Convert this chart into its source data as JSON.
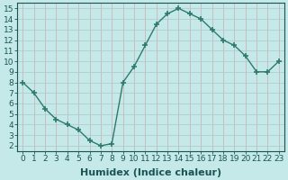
{
  "xlabel": "Humidex (Indice chaleur)",
  "x": [
    0,
    1,
    2,
    3,
    4,
    5,
    6,
    7,
    8,
    9,
    10,
    11,
    12,
    13,
    14,
    15,
    16,
    17,
    18,
    19,
    20,
    21,
    22,
    23
  ],
  "y": [
    8.0,
    7.0,
    5.5,
    4.5,
    4.0,
    3.5,
    2.5,
    2.0,
    2.2,
    8.0,
    9.5,
    11.5,
    13.5,
    14.5,
    15.0,
    14.5,
    14.0,
    13.0,
    12.0,
    11.5,
    10.5,
    9.0,
    9.0,
    10.0
  ],
  "line_color": "#2d7a6e",
  "marker": "+",
  "marker_size": 4,
  "marker_lw": 1.2,
  "bg_color": "#c5e8e8",
  "grid_color_v": "#c8b8b8",
  "grid_color_h": "#b0cdcd",
  "ylim": [
    1.5,
    15.5
  ],
  "xlim": [
    -0.5,
    23.5
  ],
  "yticks": [
    2,
    3,
    4,
    5,
    6,
    7,
    8,
    9,
    10,
    11,
    12,
    13,
    14,
    15
  ],
  "xticks": [
    0,
    1,
    2,
    3,
    4,
    5,
    6,
    7,
    8,
    9,
    10,
    11,
    12,
    13,
    14,
    15,
    16,
    17,
    18,
    19,
    20,
    21,
    22,
    23
  ],
  "tick_fontsize": 6.5,
  "xlabel_fontsize": 8,
  "label_color": "#1a5555"
}
